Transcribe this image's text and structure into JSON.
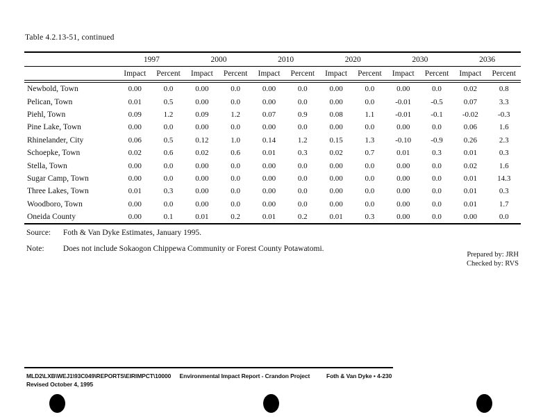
{
  "page": {
    "title": "Table 4.2.13-51, continued"
  },
  "table": {
    "year_groups": [
      "1997",
      "2000",
      "2010",
      "2020",
      "2030",
      "2036"
    ],
    "sub_headers": [
      "Impact",
      "Percent"
    ],
    "rows": [
      {
        "name": "Newbold, Town",
        "values": [
          "0.00",
          "0.0",
          "0.00",
          "0.0",
          "0.00",
          "0.0",
          "0.00",
          "0.0",
          "0.00",
          "0.0",
          "0.02",
          "0.8"
        ]
      },
      {
        "name": "Pelican, Town",
        "values": [
          "0.01",
          "0.5",
          "0.00",
          "0.0",
          "0.00",
          "0.0",
          "0.00",
          "0.0",
          "-0.01",
          "-0.5",
          "0.07",
          "3.3"
        ]
      },
      {
        "name": "Piehl, Town",
        "values": [
          "0.09",
          "1.2",
          "0.09",
          "1.2",
          "0.07",
          "0.9",
          "0.08",
          "1.1",
          "-0.01",
          "-0.1",
          "-0.02",
          "-0.3"
        ]
      },
      {
        "name": "Pine Lake, Town",
        "values": [
          "0.00",
          "0.0",
          "0.00",
          "0.0",
          "0.00",
          "0.0",
          "0.00",
          "0.0",
          "0.00",
          "0.0",
          "0.06",
          "1.6"
        ]
      },
      {
        "name": "Rhinelander, City",
        "values": [
          "0.06",
          "0.5",
          "0.12",
          "1.0",
          "0.14",
          "1.2",
          "0.15",
          "1.3",
          "-0.10",
          "-0.9",
          "0.26",
          "2.3"
        ]
      },
      {
        "name": "Schoepke, Town",
        "values": [
          "0.02",
          "0.6",
          "0.02",
          "0.6",
          "0.01",
          "0.3",
          "0.02",
          "0.7",
          "0.01",
          "0.3",
          "0.01",
          "0.3"
        ]
      },
      {
        "name": "Stella, Town",
        "values": [
          "0.00",
          "0.0",
          "0.00",
          "0.0",
          "0.00",
          "0.0",
          "0.00",
          "0.0",
          "0.00",
          "0.0",
          "0.02",
          "1.6"
        ]
      },
      {
        "name": "Sugar Camp, Town",
        "values": [
          "0.00",
          "0.0",
          "0.00",
          "0.0",
          "0.00",
          "0.0",
          "0.00",
          "0.0",
          "0.00",
          "0.0",
          "0.01",
          "14.3"
        ]
      },
      {
        "name": "Three Lakes, Town",
        "values": [
          "0.01",
          "0.3",
          "0.00",
          "0.0",
          "0.00",
          "0.0",
          "0.00",
          "0.0",
          "0.00",
          "0.0",
          "0.01",
          "0.3"
        ]
      },
      {
        "name": "Woodboro, Town",
        "values": [
          "0.00",
          "0.0",
          "0.00",
          "0.0",
          "0.00",
          "0.0",
          "0.00",
          "0.0",
          "0.00",
          "0.0",
          "0.01",
          "1.7"
        ]
      },
      {
        "name": "Oneida County",
        "values": [
          "0.00",
          "0.1",
          "0.01",
          "0.2",
          "0.01",
          "0.2",
          "0.01",
          "0.3",
          "0.00",
          "0.0",
          "0.00",
          "0.0"
        ]
      }
    ]
  },
  "annotations": {
    "source_label": "Source:",
    "source_text": "Foth & Van Dyke Estimates, January 1995.",
    "note_label": "Note:",
    "note_text": "Does not include Sokaogon Chippewa Community or Forest County Potawatomi.",
    "prepared_by": "Prepared by: JRH",
    "checked_by": "Checked by: RVS"
  },
  "footer": {
    "file_path": "MLD2\\LXB\\WEJ1\\93C049\\REPORTS\\EIRIMPCT\\10000",
    "document_title": "Environmental Impact Report - Crandon Project",
    "page_ref": "Foth & Van Dyke • 4-230",
    "revision": "Revised October 4, 1995"
  },
  "scan_marks": {
    "punch_dot_count": 3
  },
  "colors": {
    "paper": "#ffffff",
    "ink": "#111111"
  }
}
